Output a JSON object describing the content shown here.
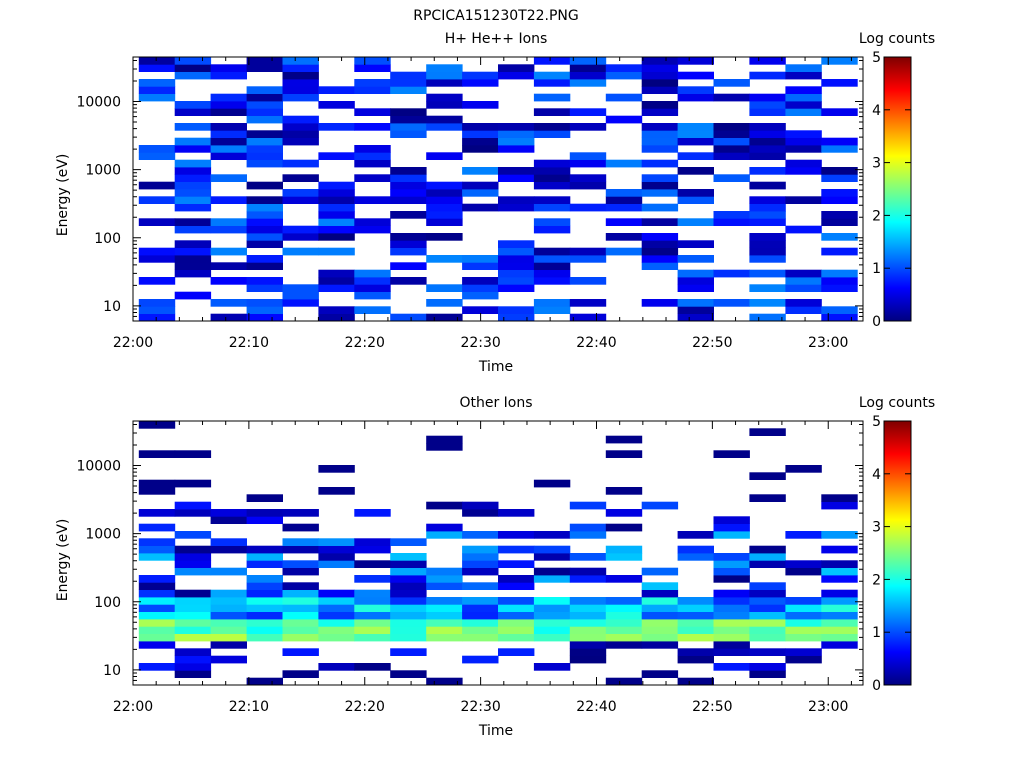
{
  "figure_title": "RPCICA151230T22.PNG",
  "colors": {
    "background": "#ffffff",
    "axis": "#000000",
    "colormap": [
      "#00007f",
      "#0000ff",
      "#007fff",
      "#00ffff",
      "#7fff7f",
      "#ffff00",
      "#ff7f00",
      "#ff0000",
      "#7f0000"
    ]
  },
  "chart_data": [
    {
      "type": "heatmap",
      "title": "H+ He++ Ions",
      "xlabel": "Time",
      "ylabel": "Energy (eV)",
      "yscale": "log",
      "x_range": [
        "22:00",
        "23:03"
      ],
      "ylim": [
        6,
        45000
      ],
      "x_ticks": [
        "22:00",
        "22:10",
        "22:20",
        "22:30",
        "22:40",
        "22:50",
        "23:00"
      ],
      "y_ticks": [
        "10",
        "100",
        "1000",
        "10000"
      ],
      "colorbar": {
        "label": "Log counts",
        "range": [
          0,
          5
        ],
        "ticks": [
          "0",
          "1",
          "2",
          "3",
          "4",
          "5"
        ]
      },
      "time_bins": [
        "22:01",
        "22:04",
        "22:07",
        "22:10",
        "22:14",
        "22:17",
        "22:20",
        "22:23",
        "22:26",
        "22:29",
        "22:33",
        "22:36",
        "22:39",
        "22:42",
        "22:45",
        "22:48",
        "22:52",
        "22:55",
        "22:58",
        "23:01"
      ],
      "energy_range_ev": [
        6,
        45000
      ],
      "dominant_level_log_counts": [
        0,
        1.3
      ],
      "description_of_pattern": "sparse dark-blue counts across all energies"
    },
    {
      "type": "heatmap",
      "title": "Other Ions",
      "xlabel": "Time",
      "ylabel": "Energy (eV)",
      "yscale": "log",
      "x_range": [
        "22:00",
        "23:03"
      ],
      "ylim": [
        6,
        45000
      ],
      "x_ticks": [
        "22:00",
        "22:10",
        "22:20",
        "22:30",
        "22:40",
        "22:50",
        "23:00"
      ],
      "y_ticks": [
        "10",
        "100",
        "1000",
        "10000"
      ],
      "colorbar": {
        "label": "Log counts",
        "range": [
          0,
          5
        ],
        "ticks": [
          "0",
          "1",
          "2",
          "3",
          "4",
          "5"
        ]
      },
      "time_bins": [
        "22:01",
        "22:04",
        "22:07",
        "22:10",
        "22:14",
        "22:17",
        "22:20",
        "22:23",
        "22:26",
        "22:29",
        "22:33",
        "22:36",
        "22:39",
        "22:42",
        "22:45",
        "22:48",
        "22:52",
        "22:55",
        "22:58",
        "23:01"
      ],
      "band_peak_energy_ev": [
        30,
        55
      ],
      "band_peak_log_counts": 2.8,
      "upper_energy_extent_ev": 30000
    }
  ]
}
